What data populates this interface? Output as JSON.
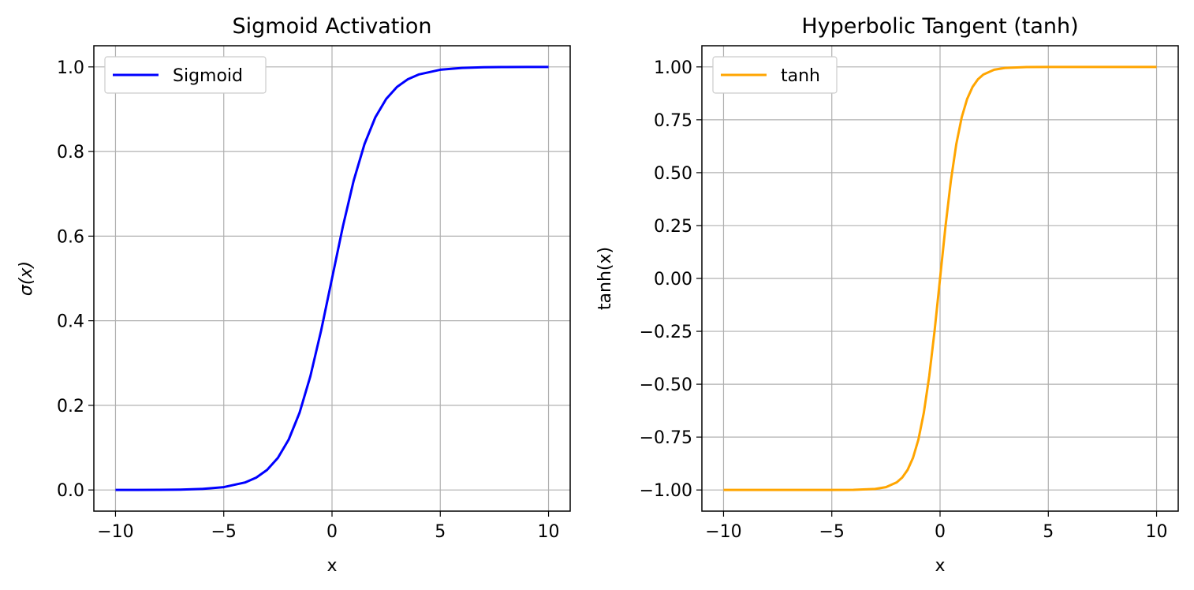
{
  "chart_data": [
    {
      "type": "line",
      "title": "Sigmoid Activation",
      "xlabel": "x",
      "ylabel": "σ(x)",
      "xlim": [
        -11,
        11
      ],
      "ylim": [
        -0.05,
        1.05
      ],
      "xticks": [
        -10,
        -5,
        0,
        5,
        10
      ],
      "xtick_labels": [
        "−10",
        "−5",
        "0",
        "5",
        "10"
      ],
      "yticks": [
        0.0,
        0.2,
        0.4,
        0.6,
        0.8,
        1.0
      ],
      "ytick_labels": [
        "0.0",
        "0.2",
        "0.4",
        "0.6",
        "0.8",
        "1.0"
      ],
      "grid": true,
      "legend_position": "upper-left",
      "series": [
        {
          "name": "Sigmoid",
          "color": "#0000ff",
          "x": [
            -10,
            -9,
            -8,
            -7,
            -6,
            -5,
            -4,
            -3.5,
            -3,
            -2.5,
            -2,
            -1.5,
            -1,
            -0.5,
            0,
            0.5,
            1,
            1.5,
            2,
            2.5,
            3,
            3.5,
            4,
            5,
            6,
            7,
            8,
            9,
            10
          ],
          "y": [
            4.54e-05,
            0.000123,
            0.000335,
            0.000911,
            0.00247,
            0.00669,
            0.018,
            0.0293,
            0.0474,
            0.0759,
            0.1192,
            0.1824,
            0.2689,
            0.3775,
            0.5,
            0.6225,
            0.7311,
            0.8176,
            0.8808,
            0.9241,
            0.9526,
            0.9707,
            0.982,
            0.9933,
            0.9975,
            0.9991,
            0.9997,
            0.9999,
            1.0
          ]
        }
      ]
    },
    {
      "type": "line",
      "title": "Hyperbolic Tangent (tanh)",
      "xlabel": "x",
      "ylabel": "tanh(x)",
      "xlim": [
        -11,
        11
      ],
      "ylim": [
        -1.1,
        1.1
      ],
      "xticks": [
        -10,
        -5,
        0,
        5,
        10
      ],
      "xtick_labels": [
        "−10",
        "−5",
        "0",
        "5",
        "10"
      ],
      "yticks": [
        -1.0,
        -0.75,
        -0.5,
        -0.25,
        0.0,
        0.25,
        0.5,
        0.75,
        1.0
      ],
      "ytick_labels": [
        "−1.00",
        "−0.75",
        "−0.50",
        "−0.25",
        "0.00",
        "0.25",
        "0.50",
        "0.75",
        "1.00"
      ],
      "grid": true,
      "legend_position": "upper-left",
      "series": [
        {
          "name": "tanh",
          "color": "#ffa500",
          "x": [
            -10,
            -8,
            -6,
            -5,
            -4,
            -3,
            -2.5,
            -2,
            -1.75,
            -1.5,
            -1.25,
            -1,
            -0.75,
            -0.5,
            -0.25,
            0,
            0.25,
            0.5,
            0.75,
            1,
            1.25,
            1.5,
            1.75,
            2,
            2.5,
            3,
            4,
            5,
            6,
            8,
            10
          ],
          "y": [
            -1.0,
            -1.0,
            -1.0,
            -0.9999,
            -0.9993,
            -0.9951,
            -0.9866,
            -0.964,
            -0.9414,
            -0.9051,
            -0.8483,
            -0.7616,
            -0.6351,
            -0.4621,
            -0.2449,
            0.0,
            0.2449,
            0.4621,
            0.6351,
            0.7616,
            0.8483,
            0.9051,
            0.9414,
            0.964,
            0.9866,
            0.9951,
            0.9993,
            0.9999,
            1.0,
            1.0,
            1.0
          ]
        }
      ]
    }
  ]
}
